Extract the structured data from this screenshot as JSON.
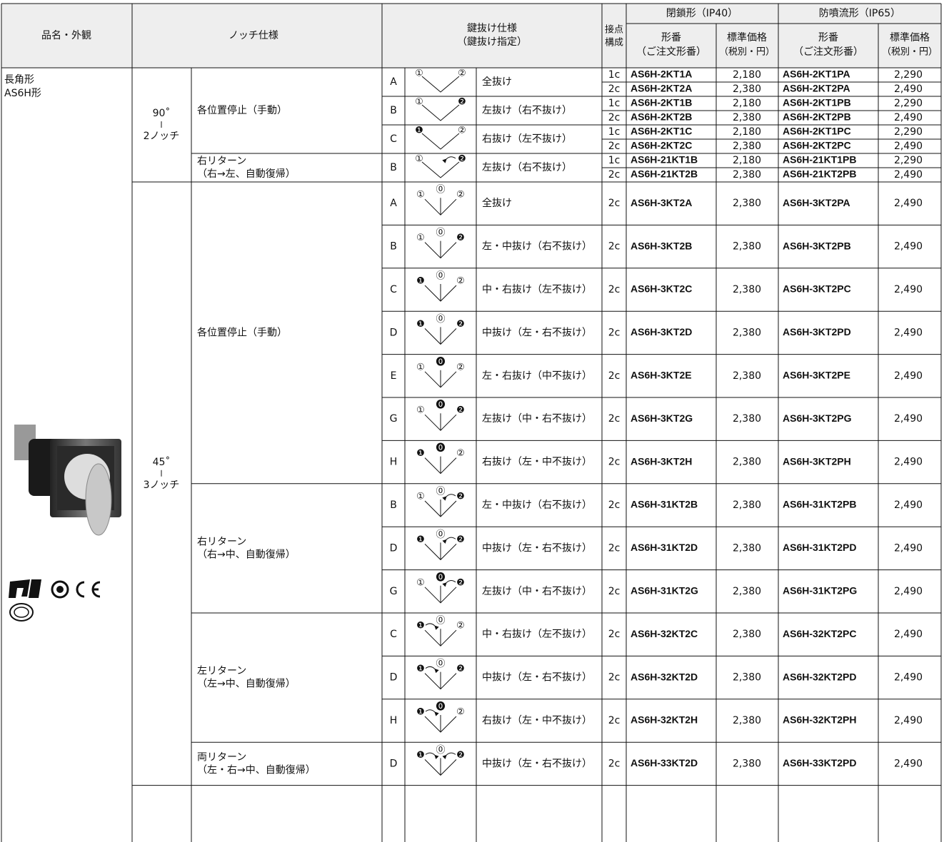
{
  "header": {
    "product": "品名・外観",
    "notch": "ノッチ仕様",
    "key": [
      "鍵抜け仕様",
      "（鍵抜け指定）"
    ],
    "contacts": [
      "接点",
      "構成"
    ],
    "closed": "閉鎖形（IP40）",
    "spray": "防噴流形（IP65）",
    "model": [
      "形番",
      "（ご注文形番）"
    ],
    "price": [
      "標準価格",
      "（税別・円）"
    ]
  },
  "product": {
    "name": [
      "長角形",
      "AS6H形"
    ]
  },
  "groups": [
    {
      "angle": "90˚",
      "notches": "2ノッチ",
      "types": [
        {
          "label": [
            "各位置停止（手動）"
          ],
          "rows": [
            {
              "letter": "A",
              "symbols": [
                "①",
                "②"
              ],
              "removal": "全抜け",
              "variants": [
                [
                  "1c",
                  "AS6H-2KT1A",
                  "2,180",
                  "AS6H-2KT1PA",
                  "2,290"
                ],
                [
                  "2c",
                  "AS6H-2KT2A",
                  "2,380",
                  "AS6H-2KT2PA",
                  "2,490"
                ]
              ]
            },
            {
              "letter": "B",
              "symbols": [
                "①",
                "❷"
              ],
              "removal": "左抜け（右不抜け）",
              "variants": [
                [
                  "1c",
                  "AS6H-2KT1B",
                  "2,180",
                  "AS6H-2KT1PB",
                  "2,290"
                ],
                [
                  "2c",
                  "AS6H-2KT2B",
                  "2,380",
                  "AS6H-2KT2PB",
                  "2,490"
                ]
              ]
            },
            {
              "letter": "C",
              "symbols": [
                "❶",
                "②"
              ],
              "removal": "右抜け（左不抜け）",
              "variants": [
                [
                  "1c",
                  "AS6H-2KT1C",
                  "2,180",
                  "AS6H-2KT1PC",
                  "2,290"
                ],
                [
                  "2c",
                  "AS6H-2KT2C",
                  "2,380",
                  "AS6H-2KT2PC",
                  "2,490"
                ]
              ]
            }
          ]
        },
        {
          "label": [
            "右リターン",
            "（右→左、自動復帰）"
          ],
          "rows": [
            {
              "letter": "B",
              "symbols": [
                "①",
                "❷"
              ],
              "removal": "左抜け（右不抜け）",
              "variants": [
                [
                  "1c",
                  "AS6H-21KT1B",
                  "2,180",
                  "AS6H-21KT1PB",
                  "2,290"
                ],
                [
                  "2c",
                  "AS6H-21KT2B",
                  "2,380",
                  "AS6H-21KT2PB",
                  "2,490"
                ]
              ]
            }
          ]
        }
      ]
    },
    {
      "angle": "45˚",
      "notches": "3ノッチ",
      "types": [
        {
          "label": [
            "各位置停止（手動）"
          ],
          "rows": [
            {
              "letter": "A",
              "symbols": [
                "①",
                "⓪",
                "②"
              ],
              "removal": "全抜け",
              "variants": [
                [
                  "2c",
                  "AS6H-3KT2A",
                  "2,380",
                  "AS6H-3KT2PA",
                  "2,490"
                ]
              ]
            },
            {
              "letter": "B",
              "symbols": [
                "①",
                "⓪",
                "❷"
              ],
              "removal": "左・中抜け（右不抜け）",
              "variants": [
                [
                  "2c",
                  "AS6H-3KT2B",
                  "2,380",
                  "AS6H-3KT2PB",
                  "2,490"
                ]
              ]
            },
            {
              "letter": "C",
              "symbols": [
                "❶",
                "⓪",
                "②"
              ],
              "removal": "中・右抜け（左不抜け）",
              "variants": [
                [
                  "2c",
                  "AS6H-3KT2C",
                  "2,380",
                  "AS6H-3KT2PC",
                  "2,490"
                ]
              ]
            },
            {
              "letter": "D",
              "symbols": [
                "❶",
                "⓪",
                "❷"
              ],
              "removal": "中抜け（左・右不抜け）",
              "variants": [
                [
                  "2c",
                  "AS6H-3KT2D",
                  "2,380",
                  "AS6H-3KT2PD",
                  "2,490"
                ]
              ]
            },
            {
              "letter": "E",
              "symbols": [
                "①",
                "⓿",
                "②"
              ],
              "removal": "左・右抜け（中不抜け）",
              "variants": [
                [
                  "2c",
                  "AS6H-3KT2E",
                  "2,380",
                  "AS6H-3KT2PE",
                  "2,490"
                ]
              ]
            },
            {
              "letter": "G",
              "symbols": [
                "①",
                "⓿",
                "❷"
              ],
              "removal": "左抜け（中・右不抜け）",
              "variants": [
                [
                  "2c",
                  "AS6H-3KT2G",
                  "2,380",
                  "AS6H-3KT2PG",
                  "2,490"
                ]
              ]
            },
            {
              "letter": "H",
              "symbols": [
                "❶",
                "⓿",
                "②"
              ],
              "removal": "右抜け（左・中不抜け）",
              "variants": [
                [
                  "2c",
                  "AS6H-3KT2H",
                  "2,380",
                  "AS6H-3KT2PH",
                  "2,490"
                ]
              ]
            }
          ]
        },
        {
          "label": [
            "右リターン",
            "（右→中、自動復帰）"
          ],
          "rows": [
            {
              "letter": "B",
              "symbols": [
                "①",
                "⓪",
                "❷"
              ],
              "removal": "左・中抜け（右不抜け）",
              "variants": [
                [
                  "2c",
                  "AS6H-31KT2B",
                  "2,380",
                  "AS6H-31KT2PB",
                  "2,490"
                ]
              ]
            },
            {
              "letter": "D",
              "symbols": [
                "❶",
                "⓪",
                "❷"
              ],
              "removal": "中抜け（左・右不抜け）",
              "variants": [
                [
                  "2c",
                  "AS6H-31KT2D",
                  "2,380",
                  "AS6H-31KT2PD",
                  "2,490"
                ]
              ]
            },
            {
              "letter": "G",
              "symbols": [
                "①",
                "⓿",
                "❷"
              ],
              "removal": "左抜け（中・右不抜け）",
              "variants": [
                [
                  "2c",
                  "AS6H-31KT2G",
                  "2,380",
                  "AS6H-31KT2PG",
                  "2,490"
                ]
              ]
            }
          ]
        },
        {
          "label": [
            "左リターン",
            "（左→中、自動復帰）"
          ],
          "rows": [
            {
              "letter": "C",
              "symbols": [
                "❶",
                "⓪",
                "②"
              ],
              "removal": "中・右抜け（左不抜け）",
              "variants": [
                [
                  "2c",
                  "AS6H-32KT2C",
                  "2,380",
                  "AS6H-32KT2PC",
                  "2,490"
                ]
              ]
            },
            {
              "letter": "D",
              "symbols": [
                "❶",
                "⓪",
                "❷"
              ],
              "removal": "中抜け（左・右不抜け）",
              "variants": [
                [
                  "2c",
                  "AS6H-32KT2D",
                  "2,380",
                  "AS6H-32KT2PD",
                  "2,490"
                ]
              ]
            },
            {
              "letter": "H",
              "symbols": [
                "❶",
                "⓿",
                "②"
              ],
              "removal": "右抜け（左・中不抜け）",
              "variants": [
                [
                  "2c",
                  "AS6H-32KT2H",
                  "2,380",
                  "AS6H-32KT2PH",
                  "2,490"
                ]
              ]
            }
          ]
        },
        {
          "label": [
            "両リターン",
            "（左・右→中、自動復帰）"
          ],
          "rows": [
            {
              "letter": "D",
              "symbols": [
                "❶",
                "⓪",
                "❷"
              ],
              "removal": "中抜け（左・右不抜け）",
              "variants": [
                [
                  "2c",
                  "AS6H-33KT2D",
                  "2,380",
                  "AS6H-33KT2PD",
                  "2,490"
                ]
              ]
            }
          ]
        }
      ]
    }
  ]
}
